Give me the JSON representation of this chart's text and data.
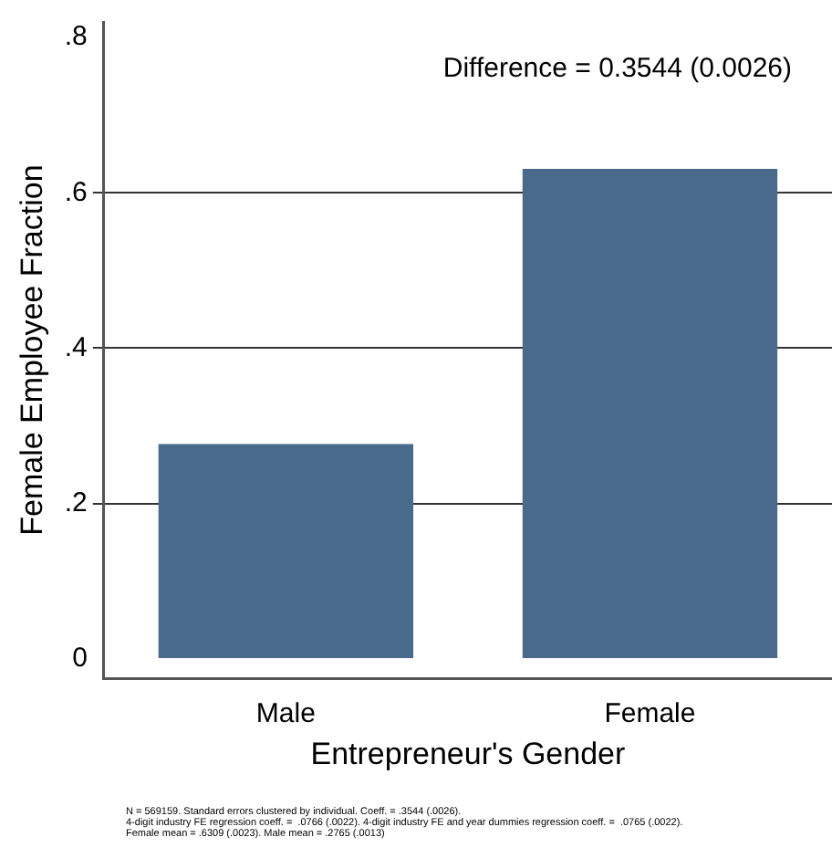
{
  "chart_data": {
    "type": "bar",
    "xlabel": "Entrepreneur's Gender",
    "ylabel": "Female Employee Fraction",
    "categories": [
      "Male",
      "Female"
    ],
    "values": [
      0.2765,
      0.6309
    ],
    "color": "#4a6a8c",
    "ylim": [
      -0.025,
      0.82
    ],
    "yticks": [
      {
        "value": 0,
        "label": "0"
      },
      {
        "value": 0.2,
        "label": ".2"
      },
      {
        "value": 0.4,
        "label": ".4"
      },
      {
        "value": 0.6,
        "label": ".6"
      },
      {
        "value": 0.8,
        "label": ".8"
      }
    ],
    "grid": "y",
    "legend": false,
    "annotations": [
      {
        "text": "Difference = 0.3544 (0.0026)"
      },
      "N = 569159. Standard errors clustered by individual. Coeff. = .3544 (.0026).",
      "4-digit industry FE regression coeff. =  .0766 (.0022). 4-digit industry FE and year dummies regression coeff. =  .0765 (.0022).",
      "Female mean = .6309 (.0023). Male mean = .2765 (.0013)"
    ]
  }
}
